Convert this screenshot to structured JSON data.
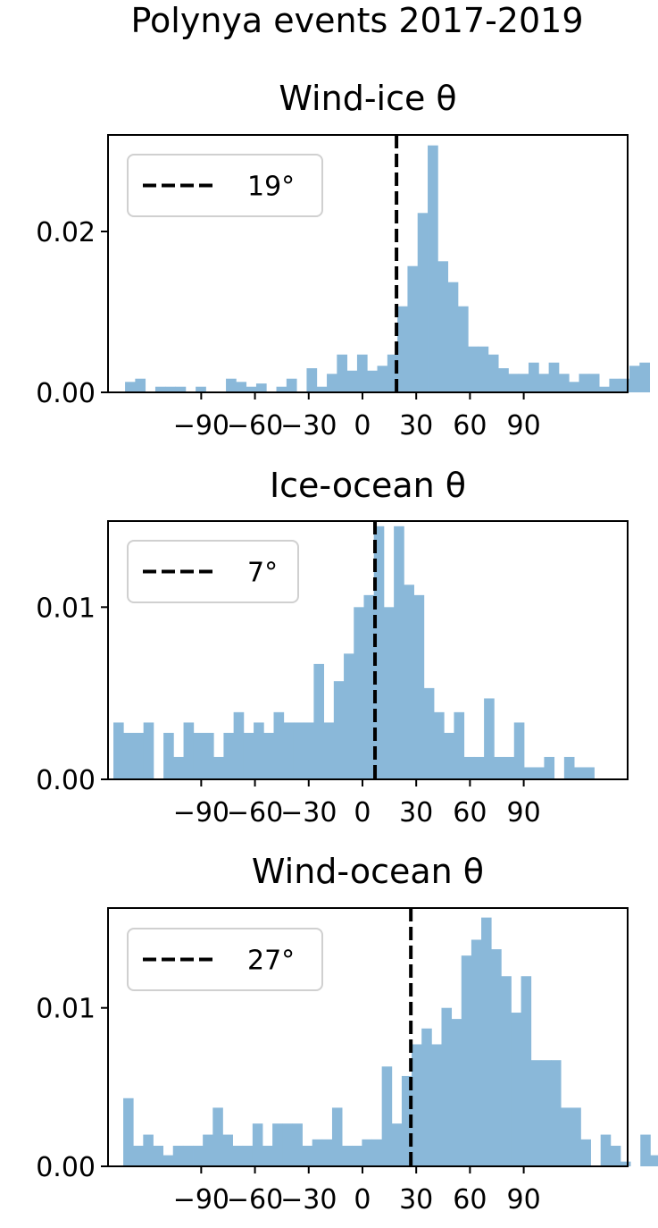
{
  "chart_data": {
    "suptitle": "Polynya events 2017-2019",
    "bar_color": "#8ab8d9",
    "mean_line_color": "#000000",
    "xticks": [
      -90,
      -60,
      -30,
      0,
      30,
      60,
      90
    ],
    "xtick_labels": [
      "−90",
      "−60",
      "−30",
      "0",
      "30",
      "60",
      "90"
    ],
    "panels": [
      {
        "type": "bar",
        "subtype": "histogram",
        "title": "Wind-ice θ",
        "xlim": [
          -142,
          148
        ],
        "ylim": [
          0,
          0.032
        ],
        "yticks": [
          0,
          0.02
        ],
        "ytick_labels": [
          "0.00",
          "0.02"
        ],
        "bin_start": -132.5,
        "bin_width": 5.63,
        "values": [
          0.0013,
          0.0017,
          0,
          0.0007,
          0.0007,
          0.0007,
          0,
          0.0007,
          0,
          0,
          0.0017,
          0.0013,
          0.0007,
          0.0011,
          0,
          0.0007,
          0.0017,
          0,
          0.003,
          0.0007,
          0.0023,
          0.0047,
          0.0027,
          0.0047,
          0.0027,
          0.0033,
          0.0047,
          0.0107,
          0.0157,
          0.0223,
          0.0307,
          0.0163,
          0.0137,
          0.0107,
          0.0057,
          0.0057,
          0.0047,
          0.003,
          0.0023,
          0.0023,
          0.0037,
          0.0023,
          0.0037,
          0.0023,
          0.0013,
          0.0023,
          0.0023,
          0.0007,
          0.0017,
          0.0017,
          0.0033,
          0.0037
        ],
        "mean": 19,
        "legend_label": "19°",
        "legend_loc": "upper left"
      },
      {
        "type": "bar",
        "subtype": "histogram",
        "title": "Ice-ocean θ",
        "xlim": [
          -142,
          148
        ],
        "ylim": [
          0,
          0.015
        ],
        "yticks": [
          0,
          0.01
        ],
        "ytick_labels": [
          "0.00",
          "0.01"
        ],
        "bin_start": -139,
        "bin_width": 5.59,
        "values": [
          0.0033,
          0.0027,
          0.0027,
          0.0033,
          0,
          0.0027,
          0.0013,
          0.0033,
          0.0027,
          0.0027,
          0.0013,
          0.0027,
          0.0039,
          0.0027,
          0.0033,
          0.0027,
          0.0039,
          0.0033,
          0.0033,
          0.0033,
          0.0067,
          0.0033,
          0.0057,
          0.0073,
          0.01,
          0.0107,
          0.0147,
          0.01,
          0.0147,
          0.0113,
          0.0107,
          0.0053,
          0.0039,
          0.0027,
          0.0039,
          0.0013,
          0.0013,
          0.0047,
          0.0013,
          0.0013,
          0.0033,
          0.0007,
          0.0007,
          0.0013,
          0,
          0.0013,
          0.0007,
          0.0007
        ],
        "mean": 7,
        "legend_label": "7°",
        "legend_loc": "upper left"
      },
      {
        "type": "bar",
        "subtype": "histogram",
        "title": "Wind-ocean θ",
        "xlim": [
          -142,
          148
        ],
        "ylim": [
          0,
          0.0163
        ],
        "yticks": [
          0,
          0.01
        ],
        "ytick_labels": [
          "0.00",
          "0.01"
        ],
        "bin_start": -133.5,
        "bin_width": 5.55,
        "values": [
          0.0043,
          0.0013,
          0.002,
          0.0013,
          0.0007,
          0.0013,
          0.0013,
          0.0013,
          0.002,
          0.0037,
          0.002,
          0.0013,
          0.0013,
          0.0027,
          0.0013,
          0.0027,
          0.0027,
          0.0027,
          0.0013,
          0.0017,
          0.0017,
          0.0037,
          0.0013,
          0.0013,
          0.0017,
          0.0017,
          0.0063,
          0.0027,
          0.0057,
          0.0077,
          0.0087,
          0.0077,
          0.01,
          0.0093,
          0.0133,
          0.0143,
          0.0157,
          0.0137,
          0.012,
          0.0097,
          0.012,
          0.0067,
          0.0067,
          0.0067,
          0.0037,
          0.0037,
          0.0017,
          0,
          0.002,
          0.0013,
          0.0003,
          0,
          0.002,
          0.0007,
          0.0007,
          0.0007
        ],
        "mean": 27,
        "legend_label": "27°",
        "legend_loc": "upper left"
      }
    ]
  }
}
